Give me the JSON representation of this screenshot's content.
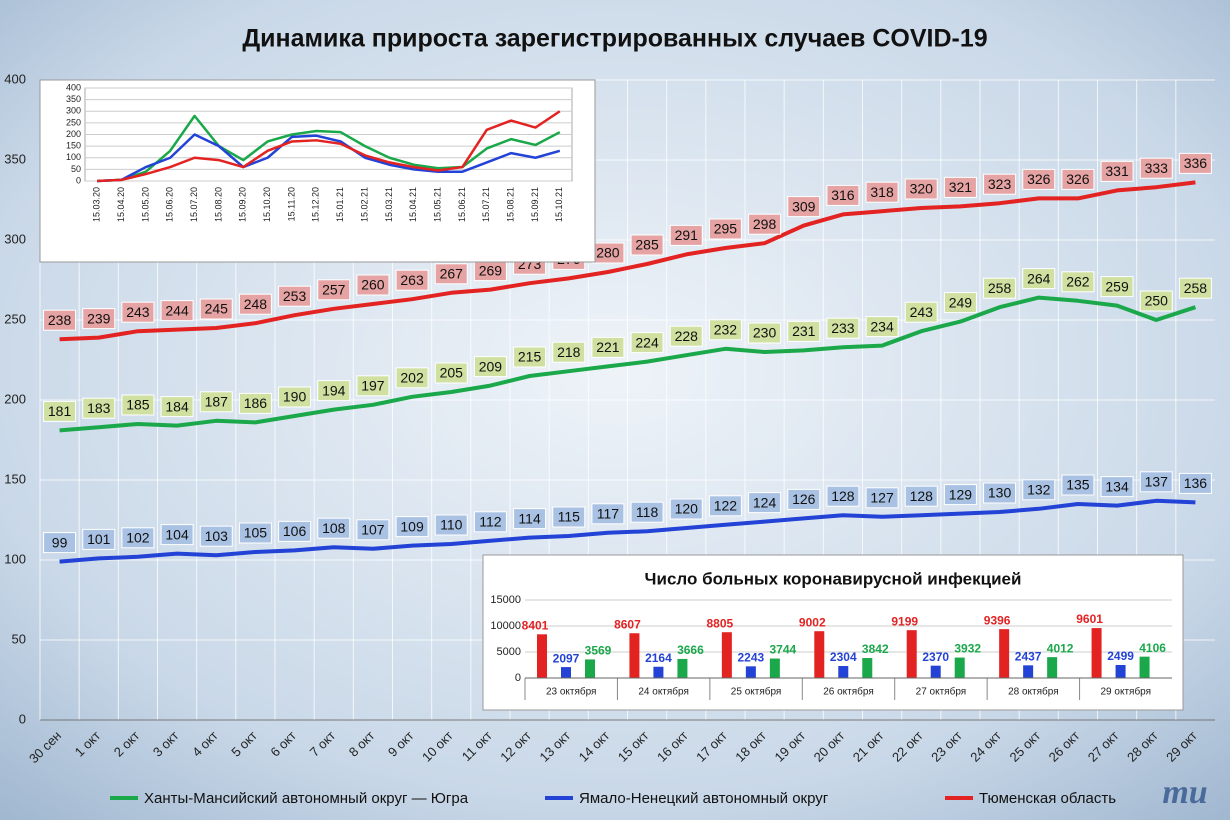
{
  "chart_data": [
    {
      "type": "line",
      "title": "Динамика прироста зарегистрированных случаев COVID-19",
      "categories": [
        "30 сен",
        "1 окт",
        "2 окт",
        "3 окт",
        "4 окт",
        "5 окт",
        "6 окт",
        "7 окт",
        "8 окт",
        "9 окт",
        "10 окт",
        "11 окт",
        "12 окт",
        "13 окт",
        "14 окт",
        "15 окт",
        "16 окт",
        "17 окт",
        "18 окт",
        "19 окт",
        "20 окт",
        "21 окт",
        "22 окт",
        "23 окт",
        "24 окт",
        "25 окт",
        "26 окт",
        "27 окт",
        "28 окт",
        "29 окт"
      ],
      "series": [
        {
          "name": "Ханты-Мансийский автономный округ — Югра",
          "color": "#1aa84a",
          "label_color": "#cfe0a0",
          "values": [
            181,
            183,
            185,
            184,
            187,
            186,
            190,
            194,
            197,
            202,
            205,
            209,
            215,
            218,
            221,
            224,
            228,
            232,
            230,
            231,
            233,
            234,
            243,
            249,
            258,
            264,
            262,
            259,
            250,
            258
          ]
        },
        {
          "name": "Ямало-Ненецкий автономный округ",
          "color": "#2342d6",
          "label_color": "#a9c2e4",
          "values": [
            99,
            101,
            102,
            104,
            103,
            105,
            106,
            108,
            107,
            109,
            110,
            112,
            114,
            115,
            117,
            118,
            120,
            122,
            124,
            126,
            128,
            127,
            128,
            129,
            130,
            132,
            135,
            134,
            137,
            136
          ]
        },
        {
          "name": "Тюменская область",
          "color": "#e32222",
          "label_color": "#e6a3a3",
          "values": [
            238,
            239,
            243,
            244,
            245,
            248,
            253,
            257,
            260,
            263,
            267,
            269,
            273,
            276,
            280,
            285,
            291,
            295,
            298,
            309,
            316,
            318,
            320,
            321,
            323,
            326,
            326,
            331,
            333,
            336
          ]
        }
      ],
      "ylim": [
        0,
        400
      ],
      "yticks": [
        0,
        50,
        100,
        150,
        200,
        250,
        300,
        350,
        400
      ],
      "grid": true
    },
    {
      "type": "line",
      "categories": [
        "15.03.20",
        "15.04.20",
        "15.05.20",
        "15.06.20",
        "15.07.20",
        "15.08.20",
        "15.09.20",
        "15.10.20",
        "15.11.20",
        "15.12.20",
        "15.01.21",
        "15.02.21",
        "15.03.21",
        "15.04.21",
        "15.05.21",
        "15.06.21",
        "15.07.21",
        "15.08.21",
        "15.09.21",
        "15.10.21"
      ],
      "series": [
        {
          "name": "Ханты-Мансийский автономный округ — Югра",
          "color": "#1aa84a",
          "values": [
            0,
            5,
            40,
            130,
            280,
            150,
            90,
            170,
            200,
            215,
            210,
            150,
            100,
            70,
            55,
            60,
            140,
            180,
            155,
            210
          ]
        },
        {
          "name": "Ямало-Ненецкий автономный округ",
          "color": "#2342d6",
          "values": [
            0,
            5,
            60,
            100,
            200,
            150,
            60,
            100,
            190,
            195,
            170,
            100,
            70,
            50,
            40,
            40,
            80,
            120,
            100,
            130
          ]
        },
        {
          "name": "Тюменская область",
          "color": "#e32222",
          "values": [
            0,
            5,
            30,
            60,
            100,
            90,
            60,
            130,
            170,
            175,
            160,
            110,
            80,
            60,
            45,
            60,
            220,
            260,
            230,
            300
          ]
        }
      ],
      "ylim": [
        0,
        400
      ],
      "yticks": [
        0,
        50,
        100,
        150,
        200,
        250,
        300,
        350,
        400
      ],
      "grid": true
    },
    {
      "type": "bar",
      "title": "Число больных коронавирусной инфекцией",
      "categories": [
        "23 октября",
        "24 октября",
        "25 октября",
        "26 октября",
        "27 октября",
        "28 октября",
        "29 октября"
      ],
      "series": [
        {
          "name": "Тюменская область",
          "color": "#e32222",
          "values": [
            8401,
            8607,
            8805,
            9002,
            9199,
            9396,
            9601
          ]
        },
        {
          "name": "Ямало-Ненецкий автономный округ",
          "color": "#2342d6",
          "values": [
            2097,
            2164,
            2243,
            2304,
            2370,
            2437,
            2499
          ]
        },
        {
          "name": "Ханты-Мансийский автономный округ — Югра",
          "color": "#1aa84a",
          "values": [
            3569,
            3666,
            3744,
            3842,
            3932,
            4012,
            4106
          ]
        }
      ],
      "ylim": [
        0,
        15000
      ],
      "yticks": [
        0,
        5000,
        10000,
        15000
      ],
      "grid": true
    }
  ],
  "logo": "mu"
}
